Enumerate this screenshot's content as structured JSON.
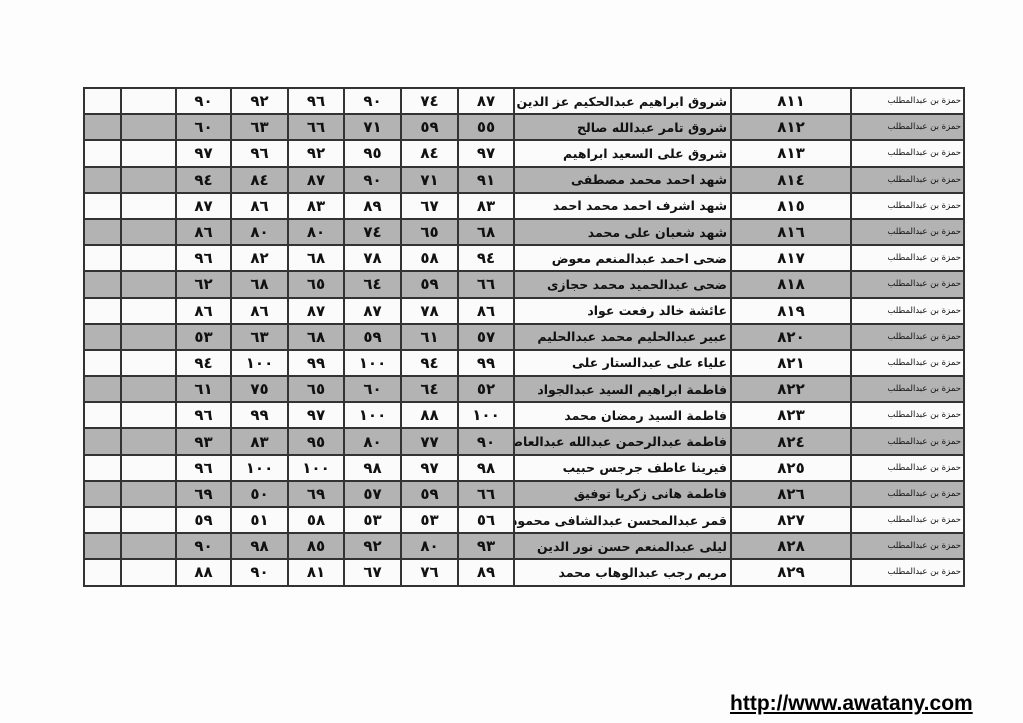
{
  "table": {
    "school": "حمزة بن عبدالمطلب",
    "rows": [
      {
        "scores": [
          "٩٠",
          "٩٢",
          "٩٦",
          "٩٠",
          "٧٤",
          "٨٧"
        ],
        "name": "شروق ابراهيم عبدالحكيم عز الدين",
        "num": "٨١١",
        "school": "حمزة بن عبدالمطلب"
      },
      {
        "scores": [
          "٦٠",
          "٦٣",
          "٦٦",
          "٧١",
          "٥٩",
          "٥٥"
        ],
        "name": "شروق تامر عبدالله صالح",
        "num": "٨١٢",
        "school": "حمزة بن عبدالمطلب"
      },
      {
        "scores": [
          "٩٧",
          "٩٦",
          "٩٢",
          "٩٥",
          "٨٤",
          "٩٧"
        ],
        "name": "شروق على السعيد ابراهيم",
        "num": "٨١٣",
        "school": "حمزة بن عبدالمطلب"
      },
      {
        "scores": [
          "٩٤",
          "٨٤",
          "٨٧",
          "٩٠",
          "٧١",
          "٩١"
        ],
        "name": "شهد احمد محمد مصطفى",
        "num": "٨١٤",
        "school": "حمزة بن عبدالمطلب"
      },
      {
        "scores": [
          "٨٧",
          "٨٦",
          "٨٣",
          "٨٩",
          "٦٧",
          "٨٣"
        ],
        "name": "شهد اشرف احمد محمد احمد",
        "num": "٨١٥",
        "school": "حمزة بن عبدالمطلب"
      },
      {
        "scores": [
          "٨٦",
          "٨٠",
          "٨٠",
          "٧٤",
          "٦٥",
          "٦٨"
        ],
        "name": "شهد شعبان على محمد",
        "num": "٨١٦",
        "school": "حمزة بن عبدالمطلب"
      },
      {
        "scores": [
          "٩٦",
          "٨٢",
          "٦٨",
          "٧٨",
          "٥٨",
          "٩٤"
        ],
        "name": "ضحى احمد عبدالمنعم معوض",
        "num": "٨١٧",
        "school": "حمزة بن عبدالمطلب"
      },
      {
        "scores": [
          "٦٢",
          "٦٨",
          "٦٥",
          "٦٤",
          "٥٩",
          "٦٦"
        ],
        "name": "ضحى عبدالحميد محمد حجازى",
        "num": "٨١٨",
        "school": "حمزة بن عبدالمطلب"
      },
      {
        "scores": [
          "٨٦",
          "٨٦",
          "٨٧",
          "٨٧",
          "٧٨",
          "٨٦"
        ],
        "name": "عائشة خالد رفعت عواد",
        "num": "٨١٩",
        "school": "حمزة بن عبدالمطلب"
      },
      {
        "scores": [
          "٥٣",
          "٦٣",
          "٦٨",
          "٥٩",
          "٦١",
          "٥٧"
        ],
        "name": "عبير عبدالحليم محمد عبدالحليم",
        "num": "٨٢٠",
        "school": "حمزة بن عبدالمطلب"
      },
      {
        "scores": [
          "٩٤",
          "١٠٠",
          "٩٩",
          "١٠٠",
          "٩٤",
          "٩٩"
        ],
        "name": "علياء على عبدالستار على",
        "num": "٨٢١",
        "school": "حمزة بن عبدالمطلب"
      },
      {
        "scores": [
          "٦١",
          "٧٥",
          "٦٥",
          "٦٠",
          "٦٤",
          "٥٢"
        ],
        "name": "فاطمة ابراهيم السيد عبدالجواد",
        "num": "٨٢٢",
        "school": "حمزة بن عبدالمطلب"
      },
      {
        "scores": [
          "٩٦",
          "٩٩",
          "٩٧",
          "١٠٠",
          "٨٨",
          "١٠٠"
        ],
        "name": "فاطمة السيد رمضان محمد",
        "num": "٨٢٣",
        "school": "حمزة بن عبدالمطلب"
      },
      {
        "scores": [
          "٩٣",
          "٨٣",
          "٩٥",
          "٨٠",
          "٧٧",
          "٩٠"
        ],
        "name": "فاطمة عبدالرحمن عبدالله عبدالعاطى",
        "num": "٨٢٤",
        "school": "حمزة بن عبدالمطلب"
      },
      {
        "scores": [
          "٩٦",
          "١٠٠",
          "١٠٠",
          "٩٨",
          "٩٧",
          "٩٨"
        ],
        "name": "فيرينا عاطف جرجس حبيب",
        "num": "٨٢٥",
        "school": "حمزة بن عبدالمطلب"
      },
      {
        "scores": [
          "٦٩",
          "٥٠",
          "٦٩",
          "٥٧",
          "٥٩",
          "٦٦"
        ],
        "name": "فاطمة هانى زكريا توفيق",
        "num": "٨٢٦",
        "school": "حمزة بن عبدالمطلب"
      },
      {
        "scores": [
          "٥٩",
          "٥١",
          "٥٨",
          "٥٣",
          "٥٣",
          "٥٦"
        ],
        "name": "قمر عبدالمحسن عبدالشافى محمود",
        "num": "٨٢٧",
        "school": "حمزة بن عبدالمطلب"
      },
      {
        "scores": [
          "٩٠",
          "٩٨",
          "٨٥",
          "٩٢",
          "٨٠",
          "٩٣"
        ],
        "name": "ليلى عبدالمنعم حسن نور الدين",
        "num": "٨٢٨",
        "school": "حمزة بن عبدالمطلب"
      },
      {
        "scores": [
          "٨٨",
          "٩٠",
          "٨١",
          "٦٧",
          "٧٦",
          "٨٩"
        ],
        "name": "مريم رجب عبدالوهاب محمد",
        "num": "٨٢٩",
        "school": "حمزة بن عبدالمطلب"
      }
    ]
  },
  "colors": {
    "shaded_row": "#b3b3b3",
    "white_row": "#fbfbfb",
    "border": "#333333"
  },
  "footer": {
    "url": "http://www.awatany.com"
  }
}
